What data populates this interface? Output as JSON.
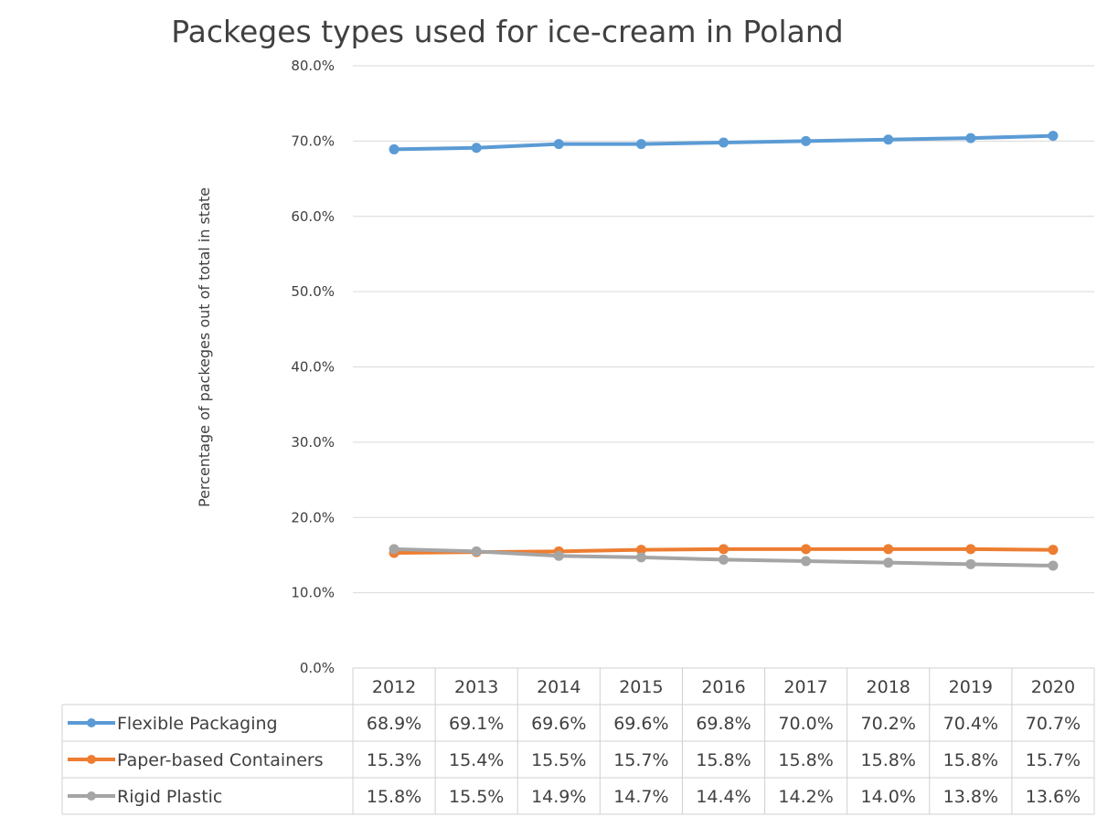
{
  "chart_data": {
    "type": "line",
    "title": "Packeges types used for ice-cream in Poland",
    "ylabel": "Percentage of packeges out of total in state",
    "xlabel": "",
    "ylim": [
      0,
      80
    ],
    "yticks": [
      "0.0%",
      "10.0%",
      "20.0%",
      "30.0%",
      "40.0%",
      "50.0%",
      "60.0%",
      "70.0%",
      "80.0%"
    ],
    "categories": [
      "2012",
      "2013",
      "2014",
      "2015",
      "2016",
      "2017",
      "2018",
      "2019",
      "2020"
    ],
    "grid": true,
    "legend": "data table",
    "series": [
      {
        "name": "Flexible Packaging",
        "color": "#5B9BD5",
        "values": [
          68.9,
          69.1,
          69.6,
          69.6,
          69.8,
          70.0,
          70.2,
          70.4,
          70.7
        ],
        "labels": [
          "68.9%",
          "69.1%",
          "69.6%",
          "69.6%",
          "69.8%",
          "70.0%",
          "70.2%",
          "70.4%",
          "70.7%"
        ]
      },
      {
        "name": "Paper-based Containers",
        "color": "#ED7D31",
        "values": [
          15.3,
          15.4,
          15.5,
          15.7,
          15.8,
          15.8,
          15.8,
          15.8,
          15.7
        ],
        "labels": [
          "15.3%",
          "15.4%",
          "15.5%",
          "15.7%",
          "15.8%",
          "15.8%",
          "15.8%",
          "15.8%",
          "15.7%"
        ]
      },
      {
        "name": "Rigid Plastic",
        "color": "#A5A5A5",
        "values": [
          15.8,
          15.5,
          14.9,
          14.7,
          14.4,
          14.2,
          14.0,
          13.8,
          13.6
        ],
        "labels": [
          "15.8%",
          "15.5%",
          "14.9%",
          "14.7%",
          "14.4%",
          "14.2%",
          "14.0%",
          "13.8%",
          "13.6%"
        ]
      }
    ]
  }
}
